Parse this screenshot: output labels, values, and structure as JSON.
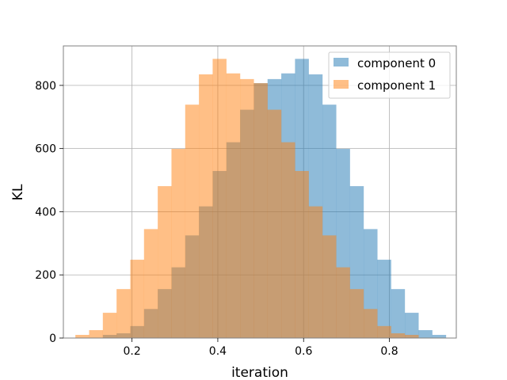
{
  "chart_data": {
    "type": "histogram",
    "title": "",
    "xlabel": "iteration",
    "ylabel": "KL",
    "xlim": [
      0.04,
      0.956
    ],
    "ylim": [
      0,
      925
    ],
    "x_ticks": [
      0.2,
      0.4,
      0.6,
      0.8
    ],
    "y_ticks": [
      0,
      200,
      400,
      600,
      800
    ],
    "x_tick_labels": [
      "0.2",
      "0.4",
      "0.6",
      "0.8"
    ],
    "y_tick_labels": [
      "0",
      "200",
      "400",
      "600",
      "800"
    ],
    "grid": true,
    "legend_position": "top-right",
    "series": [
      {
        "name": "component 0",
        "color": "#1f77b4",
        "alpha": 0.5,
        "bin_edges": [
          0.132,
          0.164,
          0.196,
          0.228,
          0.26,
          0.292,
          0.324,
          0.356,
          0.388,
          0.42,
          0.452,
          0.484,
          0.516,
          0.548,
          0.58,
          0.612,
          0.644,
          0.676,
          0.708,
          0.74,
          0.772,
          0.804,
          0.836,
          0.868,
          0.9,
          0.932
        ],
        "counts": [
          10,
          15,
          38,
          92,
          155,
          224,
          325,
          417,
          529,
          620,
          723,
          807,
          820,
          838,
          884,
          835,
          739,
          599,
          481,
          345,
          248,
          155,
          80,
          25,
          10
        ]
      },
      {
        "name": "component 1",
        "color": "#ff7f0e",
        "alpha": 0.5,
        "bin_edges": [
          0.068,
          0.1,
          0.132,
          0.164,
          0.196,
          0.228,
          0.26,
          0.292,
          0.324,
          0.356,
          0.388,
          0.42,
          0.452,
          0.484,
          0.516,
          0.548,
          0.58,
          0.612,
          0.644,
          0.676,
          0.708,
          0.74,
          0.772,
          0.804,
          0.836,
          0.868
        ],
        "counts": [
          10,
          25,
          80,
          155,
          248,
          345,
          481,
          599,
          739,
          835,
          884,
          838,
          820,
          807,
          723,
          620,
          529,
          417,
          325,
          224,
          155,
          92,
          38,
          15,
          10
        ]
      }
    ]
  }
}
